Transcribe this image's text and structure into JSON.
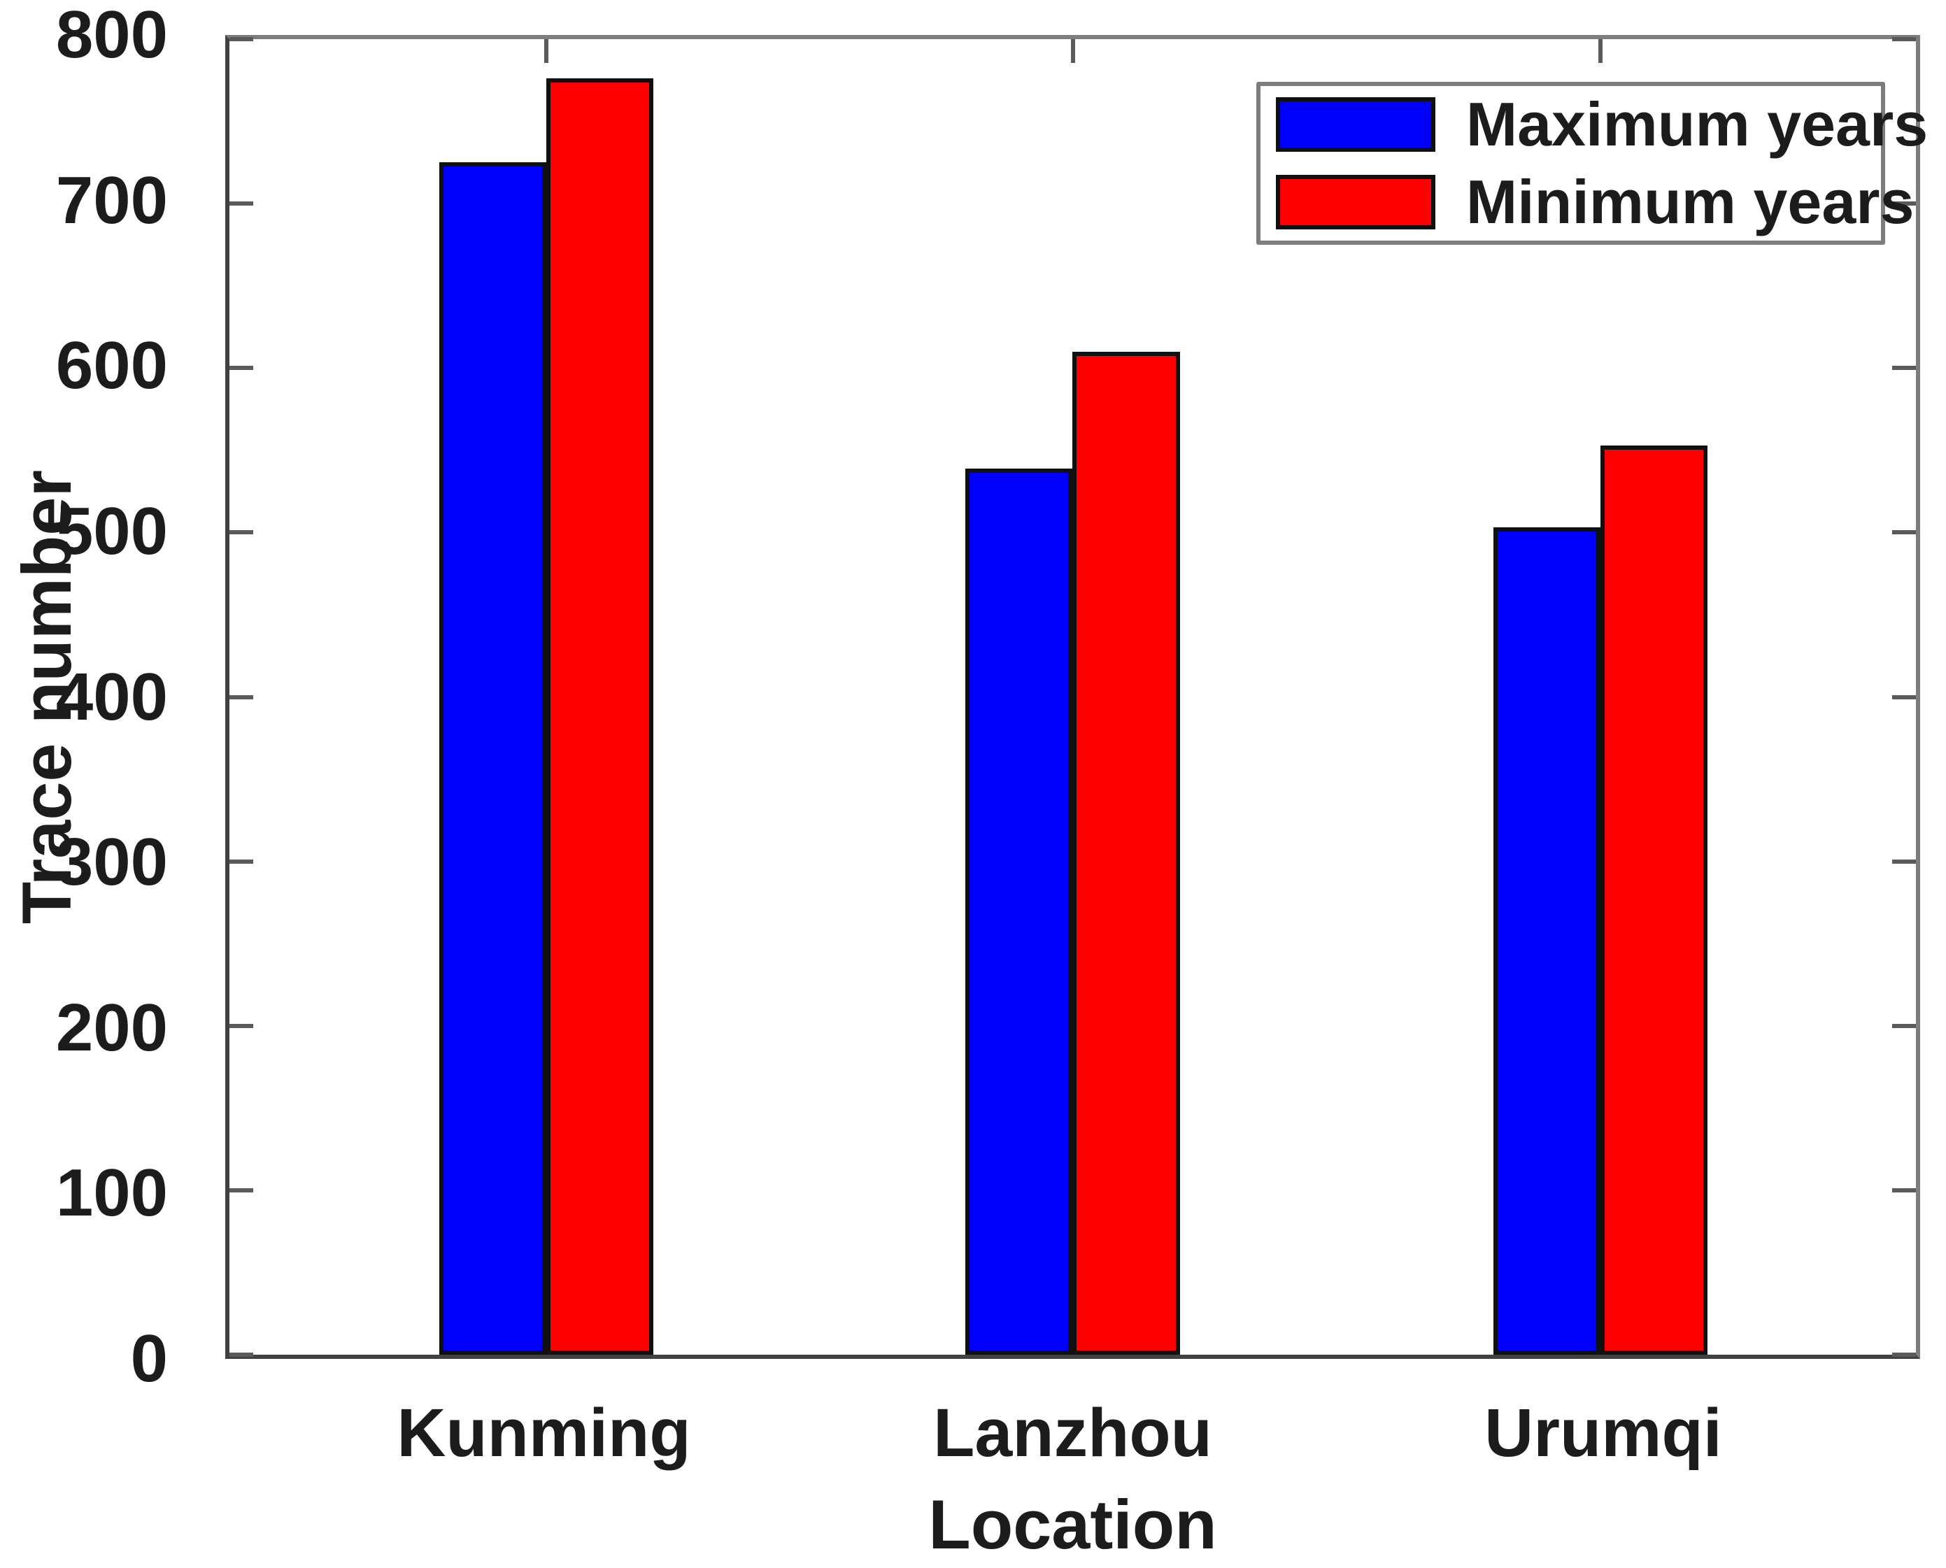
{
  "figure": {
    "background": "#ffffff",
    "text_color": "#1c1c1c",
    "axis_box_color_dark": "#414141",
    "axis_box_color_light": "#7d7d7d"
  },
  "chart_data": {
    "type": "bar",
    "title": "",
    "xlabel": "Location",
    "ylabel": "Trace number",
    "categories": [
      "Kunming",
      "Lanzhou",
      "Urumqi"
    ],
    "series": [
      {
        "name": "Maximum years",
        "color": "#0000fe",
        "values": [
          725,
          539,
          503
        ]
      },
      {
        "name": "Minimum years",
        "color": "#fe0000",
        "values": [
          776,
          610,
          553
        ]
      }
    ],
    "ylim": [
      0,
      800
    ],
    "yticks": [
      0,
      100,
      200,
      300,
      400,
      500,
      600,
      700,
      800
    ],
    "grid": false,
    "legend_position": "top-right",
    "bar_edge_color": "#101010",
    "layout": {
      "category_centers": [
        0.188,
        0.5,
        0.813
      ],
      "bar_width_frac": 0.0635
    }
  }
}
